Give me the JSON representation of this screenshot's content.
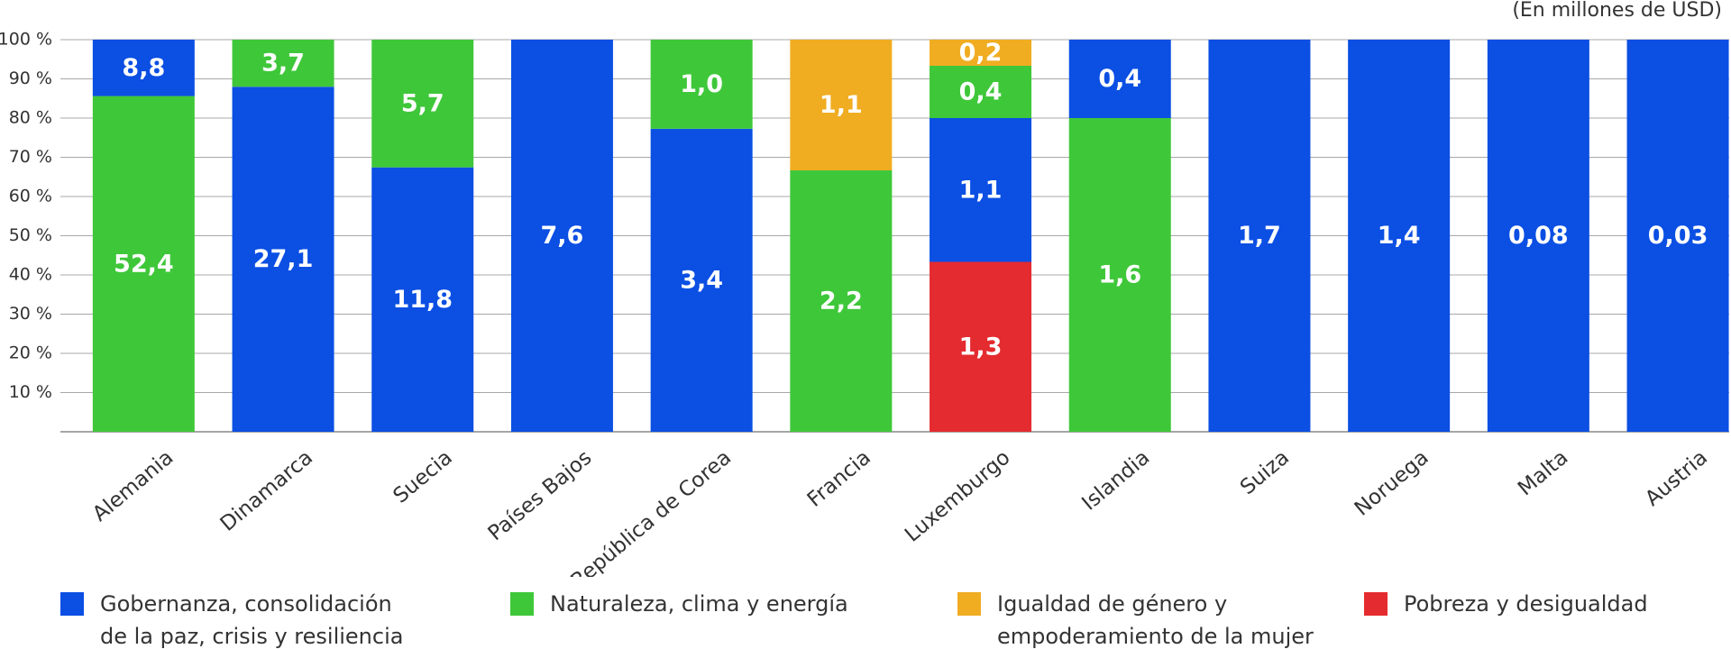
{
  "chart_data": {
    "type": "bar",
    "stacked": "percent",
    "stack_order": "descending",
    "subtitle": "(En millones de USD)",
    "categories": [
      "Alemania",
      "Dinamarca",
      "Suecia",
      "Países Bajos",
      "República de Corea",
      "Francia",
      "Luxemburgo",
      "Islandia",
      "Suiza",
      "Noruega",
      "Malta",
      "Austria"
    ],
    "series": [
      {
        "name": "Gobernanza, consolidación de la paz, crisis y resiliencia",
        "color": "#0b4fe3",
        "values": [
          8.8,
          27.1,
          11.8,
          7.6,
          3.4,
          null,
          1.1,
          0.4,
          1.7,
          1.4,
          0.08,
          0.03
        ],
        "value_labels": [
          "8,8",
          "27,1",
          "11,8",
          "7,6",
          "3,4",
          null,
          "1,1",
          "0,4",
          "1,7",
          "1,4",
          "0,08",
          "0,03"
        ]
      },
      {
        "name": "Naturaleza, clima y energía",
        "color": "#3fc73a",
        "values": [
          52.4,
          3.7,
          5.7,
          null,
          1.0,
          2.2,
          0.4,
          1.6,
          null,
          null,
          null,
          null
        ],
        "value_labels": [
          "52,4",
          "3,7",
          "5,7",
          null,
          "1,0",
          "2,2",
          "0,4",
          "1,6",
          null,
          null,
          null,
          null
        ]
      },
      {
        "name": "Igualdad de género y empoderamiento de la mujer",
        "color": "#f0ad22",
        "values": [
          null,
          null,
          null,
          null,
          null,
          1.1,
          0.2,
          null,
          null,
          null,
          null,
          null
        ],
        "value_labels": [
          null,
          null,
          null,
          null,
          null,
          "1,1",
          "0,2",
          null,
          null,
          null,
          null,
          null
        ]
      },
      {
        "name": "Pobreza y desigualdad",
        "color": "#e42b2f",
        "values": [
          null,
          null,
          null,
          null,
          null,
          null,
          1.3,
          null,
          null,
          null,
          null,
          null
        ],
        "value_labels": [
          null,
          null,
          null,
          null,
          null,
          null,
          "1,3",
          null,
          null,
          null,
          null,
          null
        ]
      }
    ],
    "ylim": [
      0,
      100
    ],
    "yticks": [
      {
        "value": 10,
        "label": "10 %"
      },
      {
        "value": 20,
        "label": "20 %"
      },
      {
        "value": 30,
        "label": "30 %"
      },
      {
        "value": 40,
        "label": "40 %"
      },
      {
        "value": 50,
        "label": "50 %"
      },
      {
        "value": 60,
        "label": "60 %"
      },
      {
        "value": 70,
        "label": "70 %"
      },
      {
        "value": 80,
        "label": "80 %"
      },
      {
        "value": 90,
        "label": "90 %"
      },
      {
        "value": 100,
        "label": "100 %"
      }
    ],
    "grid": true
  }
}
